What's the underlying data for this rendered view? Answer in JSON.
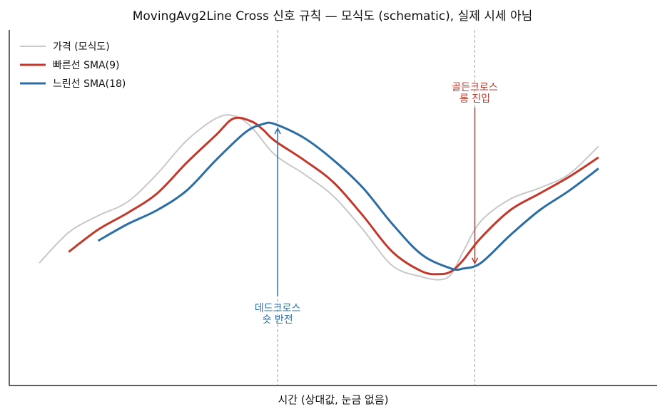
{
  "chart_data": {
    "type": "line",
    "title": "MovingAvg2Line Cross 신호 규칙 — 모식도 (schematic), 실제 시세 아님",
    "xlabel": "시간 (상대값, 눈금 없음)",
    "ylabel": "",
    "xlim": [
      0,
      100
    ],
    "ylim": [
      0,
      100
    ],
    "grid": false,
    "legend_position": "top-left",
    "series": [
      {
        "name": "가격 (모식도)",
        "color": "#c8c8c8",
        "x": [
          0,
          5,
          10,
          15,
          20,
          25,
          30,
          33,
          36,
          40,
          45,
          50,
          55,
          60,
          65,
          68,
          70,
          72,
          75,
          80,
          85,
          90,
          95
        ],
        "values": [
          31,
          42,
          48,
          53,
          63,
          75,
          83,
          84,
          80,
          70,
          63,
          55,
          43,
          30,
          26,
          25,
          27,
          35,
          46,
          54,
          58,
          63,
          73
        ]
      },
      {
        "name": "빠른선 SMA(9)",
        "color": "#c0392b",
        "x": [
          5,
          10,
          15,
          20,
          25,
          30,
          33,
          36,
          38,
          40,
          45,
          50,
          55,
          60,
          65,
          68,
          70,
          72,
          75,
          80,
          85,
          90,
          95
        ],
        "values": [
          35,
          43,
          49,
          56,
          67,
          77,
          83,
          82,
          79,
          75,
          68,
          60,
          48,
          35,
          28,
          27,
          28,
          32,
          40,
          50,
          56,
          62,
          69
        ]
      },
      {
        "name": "느린선 SMA(18)",
        "color": "#2c6da3",
        "x": [
          10,
          15,
          20,
          25,
          30,
          35,
          38,
          40,
          45,
          50,
          55,
          60,
          65,
          70,
          72,
          75,
          80,
          85,
          90,
          95
        ],
        "values": [
          39,
          45,
          50,
          57,
          68,
          78,
          81,
          81,
          76,
          68,
          58,
          45,
          34,
          29,
          29,
          31,
          41,
          50,
          57,
          65
        ]
      }
    ],
    "annotations": [
      {
        "text": "데드크로스\n숏 반전",
        "x": 40.5,
        "y": 81,
        "color": "#2c6da3"
      },
      {
        "text": "골든크로스\n롱 진입",
        "x": 74,
        "y": 29.3,
        "color": "#c0392b"
      }
    ]
  }
}
